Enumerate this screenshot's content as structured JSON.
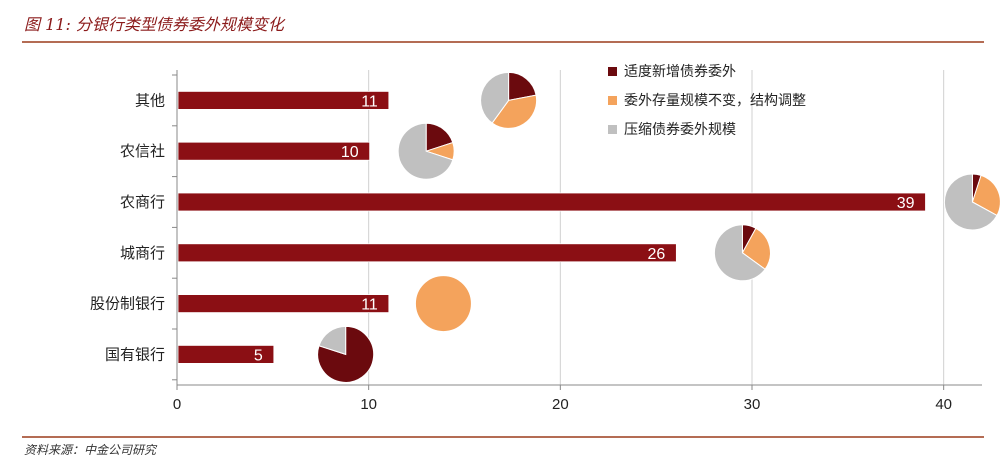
{
  "title": "图 11:  分银行类型债券委外规模变化",
  "source": "资料来源：中金公司研究",
  "chart_data": {
    "type": "bar",
    "orientation": "horizontal",
    "categories": [
      "其他",
      "农信社",
      "农商行",
      "城商行",
      "股份制银行",
      "国有银行"
    ],
    "values": [
      11,
      10,
      39,
      26,
      11,
      5
    ],
    "xlim": [
      0,
      42
    ],
    "xticks": [
      0,
      10,
      20,
      30,
      40
    ],
    "grid": true,
    "legend_position": "top-right",
    "legend": [
      "适度新增债券委外",
      "委外存量规模不变，结构调整",
      "压缩债券委外规模"
    ],
    "colors": {
      "bar": "#8b0f14",
      "increase": "#6b0a0e",
      "unchanged": "#f4a35c",
      "decrease": "#c0c0c0",
      "title": "#8b1a1a",
      "rule": "#9b3b1b"
    },
    "pies": [
      {
        "category": "其他",
        "x": 17.3,
        "shares": [
          0.22,
          0.38,
          0.4
        ]
      },
      {
        "category": "农信社",
        "x": 13.0,
        "shares": [
          0.2,
          0.1,
          0.7
        ]
      },
      {
        "category": "农商行",
        "x": 41.5,
        "shares": [
          0.05,
          0.28,
          0.67
        ]
      },
      {
        "category": "城商行",
        "x": 29.5,
        "shares": [
          0.08,
          0.27,
          0.65
        ]
      },
      {
        "category": "股份制银行",
        "x": 13.9,
        "shares": [
          0.0,
          1.0,
          0.0
        ]
      },
      {
        "category": "国有银行",
        "x": 8.8,
        "shares": [
          0.8,
          0.0,
          0.2
        ]
      }
    ]
  }
}
